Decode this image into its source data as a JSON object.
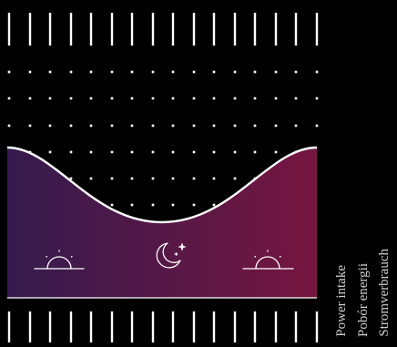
{
  "labels": {
    "en": "Power intake",
    "pl": "Pobór energii",
    "de": "Stromverbrauch"
  },
  "icons": {
    "left": "sunrise-icon",
    "center": "moon-stars-icon",
    "right": "sunset-icon"
  },
  "colors": {
    "background": "#000000",
    "gradient_start": "#341a4e",
    "gradient_end": "#76163f",
    "line": "#ffffff",
    "label_text": "#cfcfcf"
  }
}
